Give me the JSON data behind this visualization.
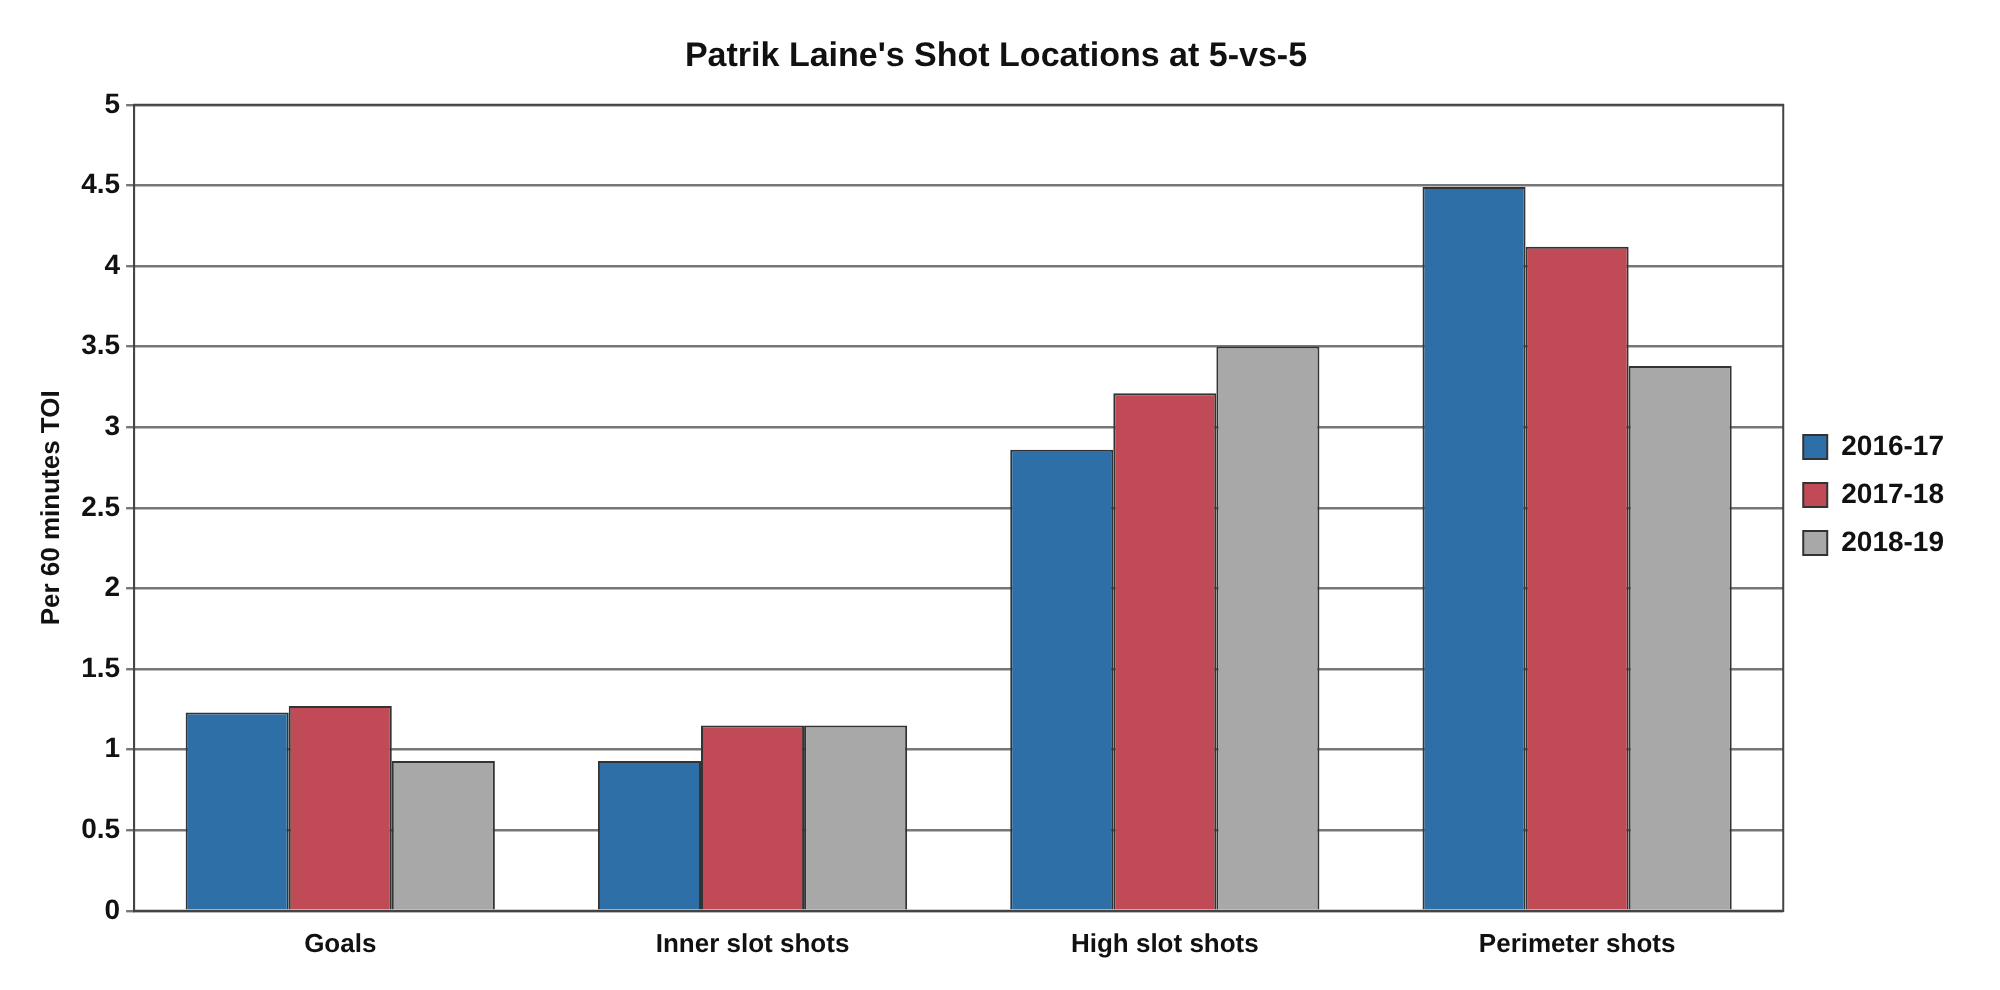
{
  "chart_data": {
    "type": "bar",
    "title": "Patrik Laine's Shot Locations at 5-vs-5",
    "ylabel": "Per 60 minutes TOI",
    "categories": [
      "Goals",
      "Inner slot shots",
      "High slot shots",
      "Perimeter shots"
    ],
    "series": [
      {
        "name": "2016-17",
        "color": "#2e6fa7",
        "values": [
          1.23,
          0.93,
          2.86,
          4.49
        ]
      },
      {
        "name": "2017-18",
        "color": "#c04a55",
        "values": [
          1.27,
          1.15,
          3.21,
          4.12
        ]
      },
      {
        "name": "2018-19",
        "color": "#a8a8a8",
        "values": [
          0.93,
          1.15,
          3.5,
          3.38
        ]
      }
    ],
    "ylim": [
      0,
      5
    ],
    "yticks": [
      0,
      0.5,
      1,
      1.5,
      2,
      2.5,
      3,
      3.5,
      4,
      4.5,
      5
    ],
    "grid": "y",
    "legend": "right"
  }
}
